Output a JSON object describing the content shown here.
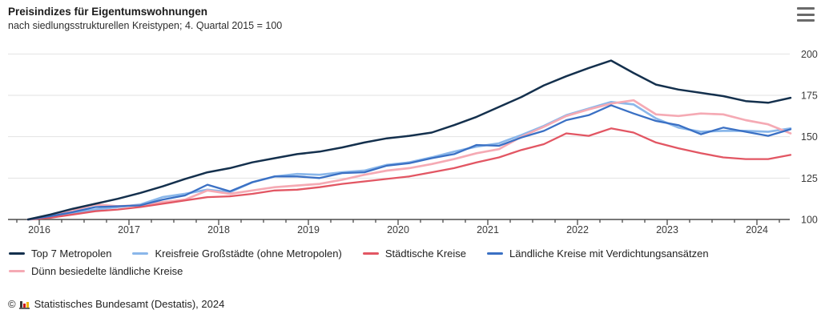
{
  "header": {
    "title": "Preisindizes für Eigentumswohnungen",
    "subtitle": "nach siedlungsstrukturellen Kreistypen; 4. Quartal 2015 = 100"
  },
  "footer": {
    "copyright_symbol": "©",
    "source_text": "Statistisches Bundesamt (Destatis), 2024",
    "logo_icon": "destatis-bar-chart-icon",
    "logo_colors": [
      "#3a3a3a",
      "#cc1719",
      "#f0b500"
    ]
  },
  "menu": {
    "icon": "hamburger-icon"
  },
  "colors": {
    "grid": "#e2e2e2",
    "axis": "#4c4c4c",
    "tick": "#4c4c4c",
    "axis_label": "#3b3b3b"
  },
  "chart_data": {
    "type": "line",
    "title": "Preisindizes für Eigentumswohnungen",
    "subtitle": "nach siedlungsstrukturellen Kreistypen; 4. Quartal 2015 = 100",
    "xlabel": "",
    "ylabel": "",
    "ylim": [
      100,
      200
    ],
    "y_ticks": [
      100,
      125,
      150,
      175,
      200
    ],
    "y_tick_side": "right",
    "grid": "horizontal",
    "legend_position": "bottom",
    "x_year_labels": [
      "2016",
      "2017",
      "2018",
      "2019",
      "2020",
      "2021",
      "2022",
      "2023",
      "2024"
    ],
    "quarters": [
      "Q4 2015",
      "Q1 2016",
      "Q2 2016",
      "Q3 2016",
      "Q4 2016",
      "Q1 2017",
      "Q2 2017",
      "Q3 2017",
      "Q4 2017",
      "Q1 2018",
      "Q2 2018",
      "Q3 2018",
      "Q4 2018",
      "Q1 2019",
      "Q2 2019",
      "Q3 2019",
      "Q4 2019",
      "Q1 2020",
      "Q2 2020",
      "Q3 2020",
      "Q4 2020",
      "Q1 2021",
      "Q2 2021",
      "Q3 2021",
      "Q4 2021",
      "Q1 2022",
      "Q2 2022",
      "Q3 2022",
      "Q4 2022",
      "Q1 2023",
      "Q2 2023",
      "Q3 2023",
      "Q4 2023",
      "Q1 2024",
      "Q2 2024"
    ],
    "series": [
      {
        "name": "Top 7 Metropolen",
        "color": "#14304d",
        "width": 2.5,
        "values": [
          100,
          103,
          106.5,
          109.5,
          112.5,
          116,
          120,
          124.5,
          128.5,
          131,
          134.5,
          137,
          139.5,
          141,
          143.5,
          146.5,
          149,
          150.5,
          152.5,
          157,
          162,
          168,
          174,
          181,
          186.5,
          191.5,
          196,
          188.5,
          181.5,
          178.5,
          176.5,
          174.5,
          171.5,
          170.5,
          173.5
        ]
      },
      {
        "name": "Kreisfreie Großstädte (ohne Metropolen)",
        "color": "#8ab7ea",
        "width": 2.7,
        "values": [
          100,
          101.5,
          104,
          106,
          107.5,
          109,
          113.5,
          115.5,
          118,
          116.5,
          122.5,
          126,
          127.5,
          127,
          128.5,
          129.5,
          133,
          134.5,
          137.5,
          141,
          144,
          146,
          151,
          156.5,
          163,
          167,
          171,
          169.5,
          161,
          155.5,
          153,
          153.5,
          153.5,
          153,
          155
        ]
      },
      {
        "name": "Städtische Kreise",
        "color": "#e25663",
        "width": 2.3,
        "values": [
          100,
          101,
          103,
          105,
          106,
          107.5,
          109.5,
          111.5,
          113.5,
          114,
          115.5,
          117.5,
          118,
          119.5,
          121.5,
          123,
          124.5,
          126,
          128.5,
          131,
          134.5,
          137.5,
          142,
          145.5,
          152,
          150.5,
          155,
          152.5,
          146.5,
          143,
          140,
          137.5,
          136.5,
          136.5,
          139
        ]
      },
      {
        "name": "Ländliche Kreise mit Verdichtungsansätzen",
        "color": "#3a70c4",
        "width": 2.3,
        "values": [
          100,
          102,
          104.5,
          107.5,
          108,
          108.5,
          112,
          114.5,
          121,
          117,
          122.5,
          126,
          126,
          125,
          128,
          128.5,
          132.5,
          134,
          137,
          139.5,
          145,
          144.5,
          149.5,
          153.5,
          160,
          163,
          169,
          164,
          159.5,
          157,
          151.5,
          155.5,
          153,
          150.5,
          154.5
        ]
      },
      {
        "name": "Dünn besiedelte ländliche Kreise",
        "color": "#f5aab4",
        "width": 2.7,
        "values": [
          100,
          102.5,
          105.5,
          109,
          108,
          108.5,
          110.5,
          112,
          117.5,
          115.5,
          117.5,
          119.5,
          120.5,
          121.5,
          124,
          127,
          129.5,
          131,
          133.5,
          136.5,
          140,
          142.5,
          150,
          156,
          162.5,
          166.5,
          170,
          172,
          163.5,
          162.5,
          164,
          163.5,
          160,
          157.5,
          152
        ]
      }
    ],
    "draw_order": [
      1,
      4,
      2,
      3,
      0
    ]
  }
}
